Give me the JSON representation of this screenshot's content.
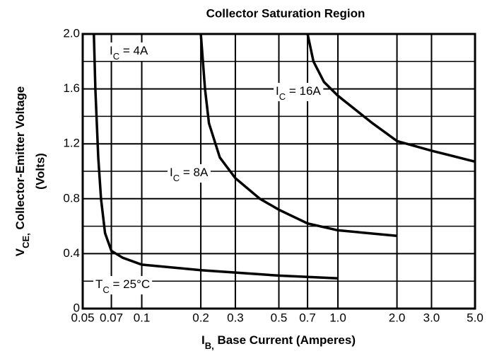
{
  "chart_data": {
    "type": "line",
    "title": "Collector Saturation Region",
    "xlabel": "IB, Base Current (Amperes)",
    "ylabel": "VCE, Collector-Emitter Voltage",
    "ylabel2": "(Volts)",
    "xscale": "log",
    "xlim": [
      0.05,
      5.0
    ],
    "xticks": [
      0.05,
      0.07,
      0.1,
      0.2,
      0.3,
      0.5,
      0.7,
      {
        "value": 1.0,
        "label": "1.0"
      },
      {
        "value": 2.0,
        "label": "2.0"
      },
      {
        "value": 3.0,
        "label": "3.0"
      },
      {
        "value": 5.0,
        "label": "5.0"
      }
    ],
    "ylim": [
      0,
      2.0
    ],
    "yticks": [
      0,
      0.4,
      0.8,
      1.2,
      1.6,
      {
        "value": 2.0,
        "label": "2.0"
      }
    ],
    "yminor": [
      0.2,
      0.6,
      1.0,
      1.4,
      1.8
    ],
    "grid": true,
    "color": "#000000",
    "annotation": "TC = 25°C",
    "series": [
      {
        "name": "IC = 4A",
        "x": [
          0.057,
          0.058,
          0.06,
          0.062,
          0.065,
          0.07,
          0.08,
          0.1,
          0.2,
          0.5,
          1.0
        ],
        "values": [
          2.0,
          1.6,
          1.1,
          0.8,
          0.55,
          0.42,
          0.37,
          0.32,
          0.28,
          0.24,
          0.22
        ]
      },
      {
        "name": "IC = 8A",
        "x": [
          0.2,
          0.21,
          0.22,
          0.25,
          0.3,
          0.4,
          0.5,
          0.7,
          1.0,
          2.0
        ],
        "values": [
          2.0,
          1.6,
          1.35,
          1.1,
          0.95,
          0.8,
          0.72,
          0.62,
          0.57,
          0.53
        ]
      },
      {
        "name": "IC = 16A",
        "x": [
          0.7,
          0.75,
          0.85,
          1.0,
          1.5,
          2.0,
          3.0,
          5.0
        ],
        "values": [
          2.0,
          1.8,
          1.65,
          1.55,
          1.35,
          1.22,
          1.15,
          1.07
        ]
      }
    ]
  }
}
